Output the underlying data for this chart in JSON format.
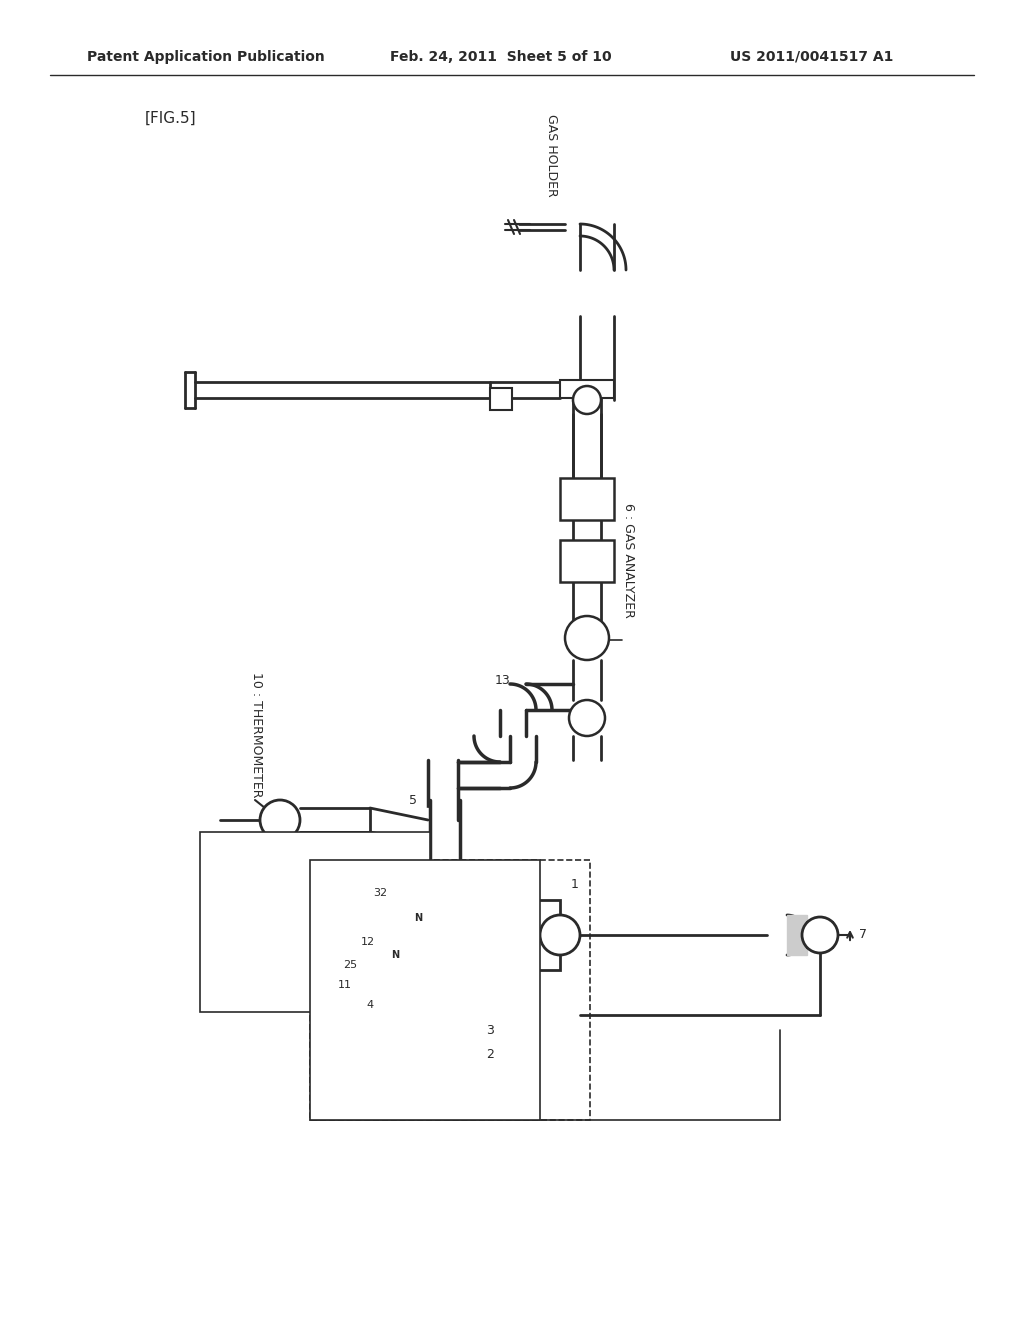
{
  "page_title_left": "Patent Application Publication",
  "page_title_mid": "Feb. 24, 2011  Sheet 5 of 10",
  "page_title_right": "US 2011/0041517 A1",
  "fig_label": "[FIG.5]",
  "bg_color": "#ffffff",
  "line_color": "#2a2a2a",
  "text_color": "#2a2a2a",
  "labels": {
    "gas_holder": "GAS HOLDER",
    "gas_analyzer": "6 : GAS ANALYZER",
    "thermometer": "10 : THERMOMETER",
    "label_1": "1",
    "label_2": "2",
    "label_3": "3",
    "label_4": "4",
    "label_5": "5",
    "label_7": "7",
    "label_11": "11",
    "label_12": "12",
    "label_13": "13",
    "label_25": "25",
    "label_32": "32"
  }
}
